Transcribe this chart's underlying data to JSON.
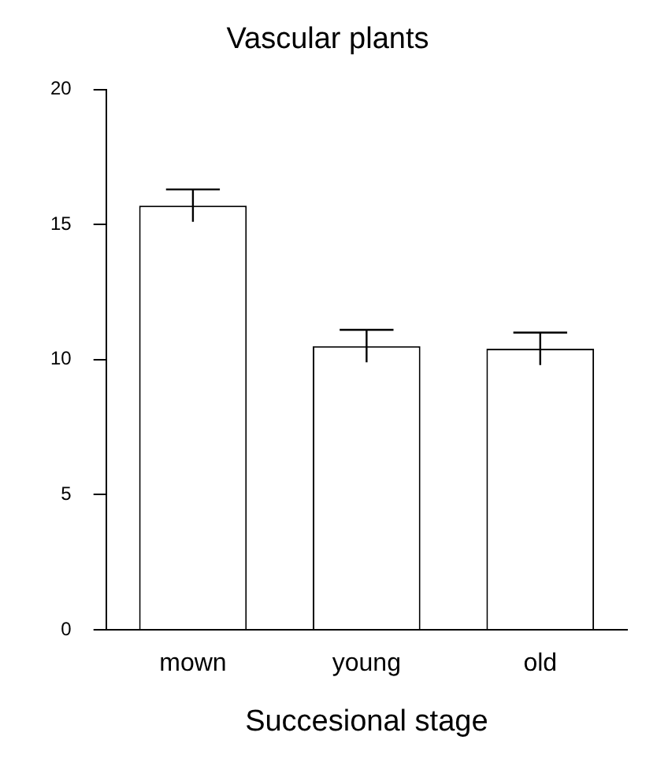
{
  "chart_data": {
    "type": "bar",
    "title": "Vascular plants",
    "xlabel": "Succesional stage",
    "categories": [
      "mown",
      "young",
      "old"
    ],
    "values": [
      15.7,
      10.5,
      10.4
    ],
    "errors": [
      0.6,
      0.6,
      0.6
    ],
    "color": "#ffffff",
    "ylim": [
      0,
      20
    ],
    "yticks": [
      0,
      5,
      10,
      15,
      20
    ],
    "grid": false,
    "legend": false
  }
}
